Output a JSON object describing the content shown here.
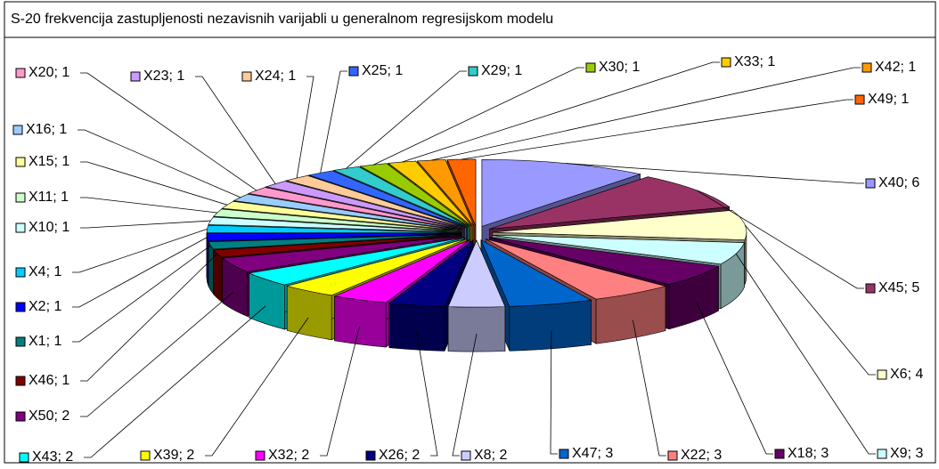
{
  "chart_data": {
    "type": "pie3d",
    "title": "S-20 frekvencija zastupljenosti nezavisnih varijabli u generalnom regresijskom modelu",
    "label_separator": "; ",
    "categories": [
      "X40",
      "X45",
      "X6",
      "X9",
      "X18",
      "X22",
      "X47",
      "X8",
      "X26",
      "X32",
      "X39",
      "X43",
      "X50",
      "X46",
      "X1",
      "X2",
      "X4",
      "X10",
      "X11",
      "X15",
      "X16",
      "X20",
      "X23",
      "X24",
      "X25",
      "X29",
      "X30",
      "X33",
      "X42",
      "X49"
    ],
    "values": [
      6,
      5,
      4,
      3,
      3,
      3,
      3,
      2,
      2,
      2,
      2,
      2,
      2,
      1,
      1,
      1,
      1,
      1,
      1,
      1,
      1,
      1,
      1,
      1,
      1,
      1,
      1,
      1,
      1,
      1
    ],
    "colors": [
      "#9999ff",
      "#993366",
      "#ffffcc",
      "#ccffff",
      "#660066",
      "#ff8080",
      "#0066cc",
      "#ccccff",
      "#000080",
      "#ff00ff",
      "#ffff00",
      "#00ffff",
      "#800080",
      "#800000",
      "#008080",
      "#0000ff",
      "#00ccff",
      "#ccffff",
      "#ccffcc",
      "#ffff99",
      "#99ccff",
      "#ff99cc",
      "#cc99ff",
      "#ffcc99",
      "#3366ff",
      "#33cccc",
      "#99cc00",
      "#ffcc00",
      "#ff9900",
      "#ff6600"
    ]
  }
}
